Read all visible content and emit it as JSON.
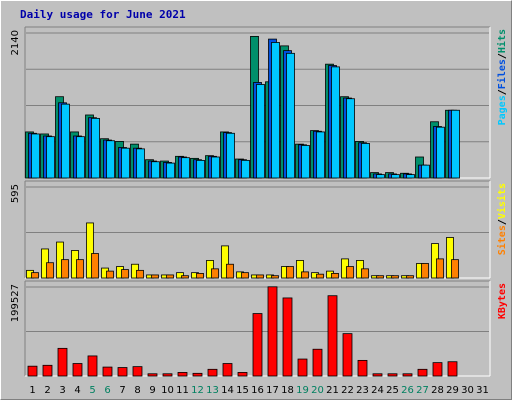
{
  "chart_data": {
    "title": "Daily usage for June 2021",
    "type": "bar",
    "x_labels": [
      "1",
      "2",
      "3",
      "4",
      "5",
      "6",
      "7",
      "8",
      "9",
      "10",
      "11",
      "12",
      "13",
      "14",
      "15",
      "16",
      "17",
      "18",
      "19",
      "20",
      "21",
      "22",
      "23",
      "24",
      "25",
      "26",
      "27",
      "28",
      "29",
      "30",
      "31"
    ],
    "weekend_days": [
      "5",
      "6",
      "12",
      "13",
      "19",
      "20",
      "26",
      "27"
    ],
    "panels": [
      {
        "id": "pages-files-hits",
        "ymax_label": "2140",
        "ymax": 2140,
        "series": [
          {
            "name": "Hits",
            "color": "#008f6b",
            "values": [
              680,
              650,
              1200,
              680,
              930,
              580,
              540,
              500,
              270,
              250,
              320,
              290,
              330,
              680,
              280,
              2090,
              1420,
              1950,
              500,
              700,
              1680,
              1200,
              540,
              80,
              80,
              70,
              310,
              830,
              1000,
              0,
              0
            ]
          },
          {
            "name": "Files",
            "color": "#0050e0",
            "values": [
              660,
              620,
              1110,
              620,
              890,
              560,
              450,
              440,
              250,
              230,
              310,
              270,
              320,
              670,
              270,
              1410,
              2050,
              1880,
              490,
              690,
              1660,
              1180,
              520,
              60,
              60,
              60,
              190,
              760,
              1000,
              0,
              0
            ]
          },
          {
            "name": "Pages",
            "color": "#00c8ff",
            "values": [
              650,
              610,
              1090,
              610,
              880,
              550,
              440,
              430,
              240,
              220,
              300,
              260,
              310,
              660,
              260,
              1380,
              2000,
              1840,
              480,
              680,
              1640,
              1170,
              510,
              50,
              50,
              50,
              190,
              750,
              1000,
              0,
              0
            ]
          }
        ],
        "legend": [
          "Pages",
          "/",
          "Files",
          "/",
          "Hits"
        ],
        "legend_colors": [
          "#00c8ff",
          "#000000",
          "#0050e0",
          "#000000",
          "#008f6b"
        ]
      },
      {
        "id": "sites-visits",
        "ymax_label": "595",
        "ymax": 595,
        "series": [
          {
            "name": "Visits",
            "color": "#ffff00",
            "values": [
              50,
              190,
              235,
              180,
              360,
              65,
              75,
              90,
              20,
              20,
              35,
              35,
              115,
              210,
              40,
              20,
              20,
              75,
              115,
              35,
              45,
              125,
              115,
              15,
              15,
              15,
              95,
              225,
              265,
              0,
              0
            ]
          },
          {
            "name": "Sites",
            "color": "#ff8000",
            "values": [
              35,
              100,
              120,
              120,
              160,
              45,
              55,
              50,
              20,
              20,
              15,
              30,
              60,
              90,
              35,
              20,
              15,
              75,
              40,
              25,
              30,
              75,
              60,
              15,
              15,
              15,
              95,
              125,
              120,
              0,
              0
            ]
          }
        ],
        "legend": [
          "Sites",
          "/",
          "Visits"
        ],
        "legend_colors": [
          "#ff8000",
          "#000000",
          "#ffff00"
        ]
      },
      {
        "id": "kbytes",
        "ymax_label": "199527",
        "ymax": 199527,
        "series": [
          {
            "name": "KBytes",
            "color": "#ff0000",
            "values": [
              22000,
              24000,
              62000,
              28000,
              45000,
              20000,
              19000,
              21000,
              5000,
              5000,
              8000,
              6000,
              15000,
              28000,
              8000,
              140000,
              200000,
              175000,
              38000,
              60000,
              180000,
              95000,
              35000,
              5000,
              5000,
              5000,
              15000,
              30000,
              32000,
              0,
              0
            ]
          }
        ],
        "legend": [
          "KBytes"
        ],
        "legend_colors": [
          "#ff0000"
        ]
      }
    ]
  },
  "colors": {
    "background": "#c0c0c0",
    "title": "#0000aa",
    "grid": "#808080",
    "weekday_label": "#000000",
    "weekend_label": "#008060"
  }
}
